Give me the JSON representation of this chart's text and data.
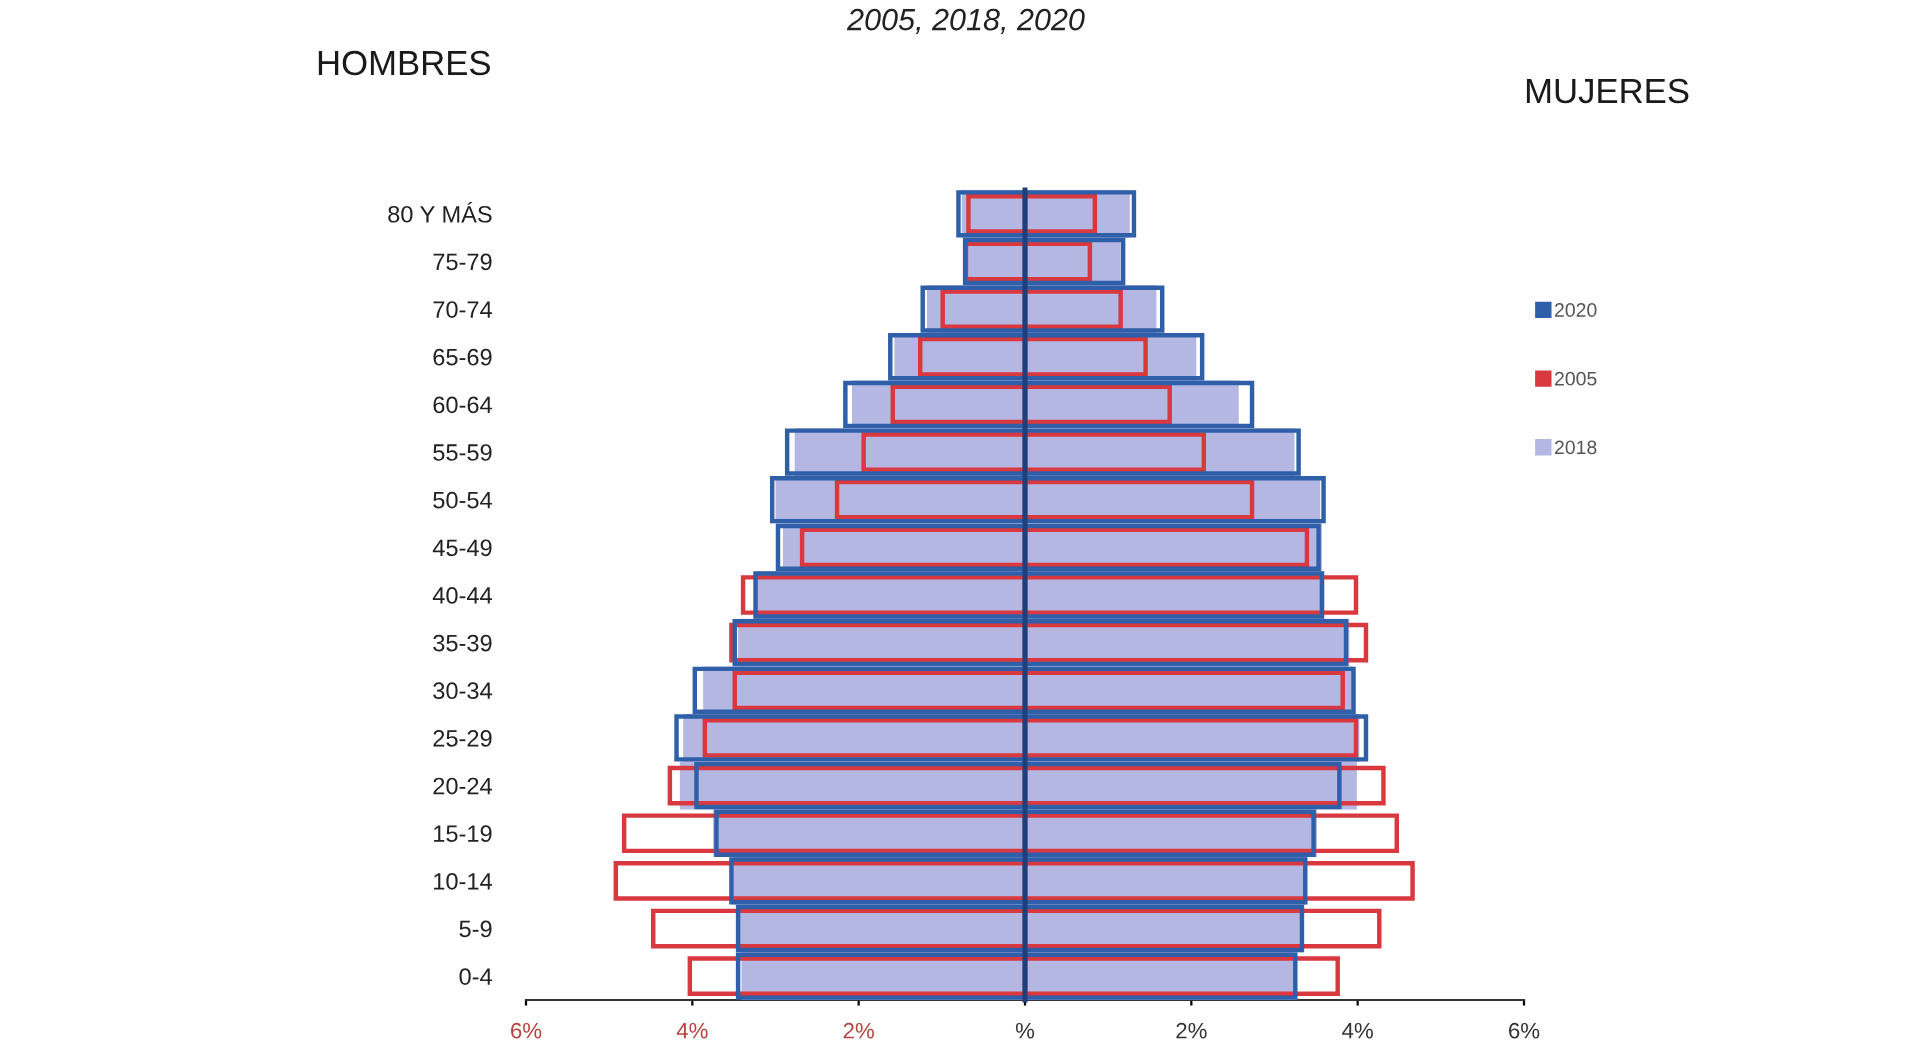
{
  "chart_data": [
    {
      "type": "bar",
      "orientation": "horizontal",
      "title": "2005, 2018, 2020",
      "annotations": [
        "HOMBRES"
      ],
      "categories": [
        "80 Y MÁS",
        "75-79",
        "70-74",
        "65-69",
        "60-64",
        "55-59",
        "50-54",
        "45-49",
        "40-44",
        "35-39",
        "30-34",
        "25-29",
        "20-24",
        "15-19",
        "10-14",
        "5-9",
        "0-4"
      ],
      "xlim": [
        6,
        0
      ],
      "xticks": [
        {
          "value": 6,
          "label": "6%"
        },
        {
          "value": 4,
          "label": "4%"
        },
        {
          "value": 2,
          "label": "2%"
        }
      ],
      "series": [
        {
          "color": "#2f5fa8",
          "values": [
            0.8,
            0.72,
            1.23,
            1.62,
            2.16,
            2.86,
            3.04,
            2.97,
            3.24,
            3.49,
            3.97,
            4.19,
            3.95,
            3.71,
            3.53,
            3.45,
            3.45
          ]
        },
        {
          "color": "#d9383e",
          "values": [
            0.68,
            0.71,
            0.99,
            1.26,
            1.59,
            1.94,
            2.26,
            2.68,
            3.39,
            3.53,
            3.49,
            3.85,
            4.27,
            4.82,
            4.92,
            4.47,
            4.03
          ]
        },
        {
          "color": "#b4b7e2",
          "values": [
            0.76,
            0.71,
            1.18,
            1.57,
            2.08,
            2.77,
            3.0,
            2.91,
            3.26,
            3.45,
            3.87,
            4.11,
            4.15,
            3.75,
            3.51,
            3.43,
            3.41
          ]
        }
      ]
    },
    {
      "type": "bar",
      "orientation": "horizontal",
      "annotations": [
        "MUJERES"
      ],
      "categories": [
        null,
        null,
        null,
        null,
        null,
        null,
        null,
        null,
        null,
        null,
        null,
        null,
        null,
        null,
        null,
        null,
        null
      ],
      "xlim": [
        0,
        6
      ],
      "xticks": [
        {
          "value": 0,
          "label": "%"
        },
        {
          "value": 2,
          "label": "2%"
        },
        {
          "value": 4,
          "label": "4%"
        },
        {
          "value": 6,
          "label": "6%"
        }
      ],
      "legend": "right",
      "series": [
        {
          "name": "2020",
          "color": "#2f5fa8",
          "values": [
            1.31,
            1.18,
            1.65,
            2.13,
            2.73,
            3.29,
            3.59,
            3.53,
            3.57,
            3.86,
            3.95,
            4.1,
            3.78,
            3.47,
            3.37,
            3.33,
            3.25
          ]
        },
        {
          "name": "2005",
          "color": "#d9383e",
          "values": [
            0.84,
            0.78,
            1.15,
            1.45,
            1.74,
            2.15,
            2.73,
            3.39,
            3.98,
            4.1,
            3.82,
            3.98,
            4.31,
            4.47,
            4.66,
            4.26,
            3.76
          ]
        },
        {
          "name": "2018",
          "color": "#b4b7e2",
          "values": [
            1.26,
            1.15,
            1.58,
            2.06,
            2.57,
            3.24,
            3.55,
            3.57,
            3.6,
            3.9,
            3.94,
            4.02,
            3.99,
            3.51,
            3.39,
            3.35,
            3.27
          ]
        }
      ]
    }
  ]
}
